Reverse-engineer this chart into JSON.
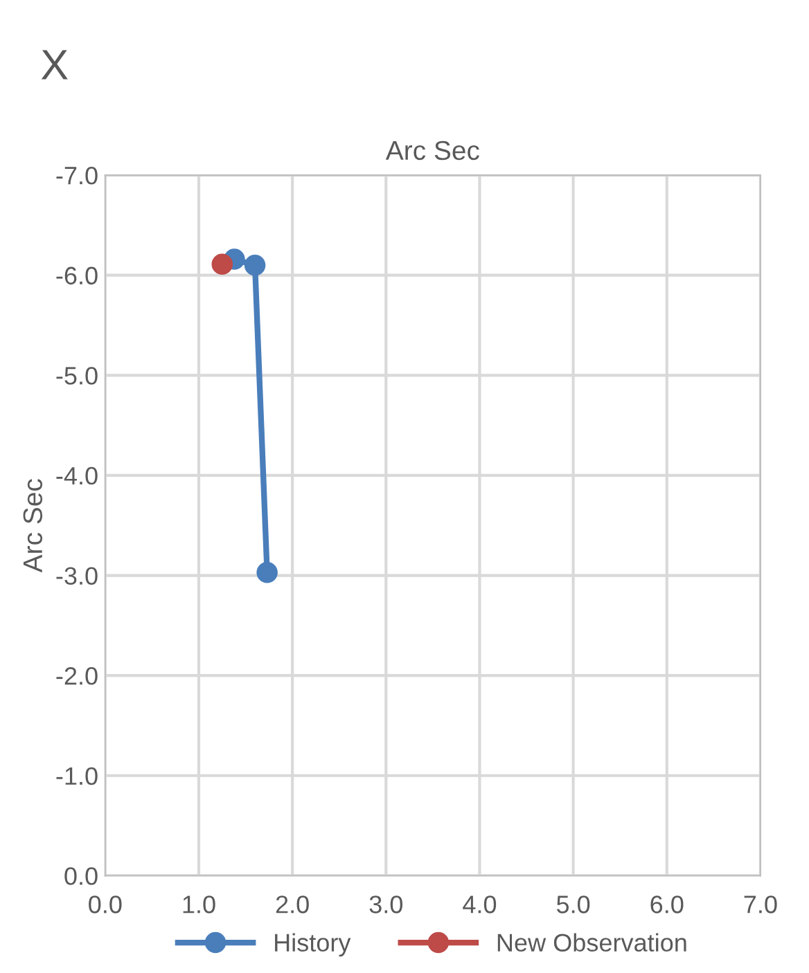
{
  "chart_data": {
    "type": "line",
    "title": "X",
    "xlabel": "Arc Sec",
    "ylabel": "Arc Sec",
    "series": [
      {
        "name": "History",
        "color": "#4a7ebb",
        "x": [
          1.73,
          1.6,
          1.38
        ],
        "values": [
          -3.03,
          -6.1,
          -6.16
        ]
      },
      {
        "name": "New Observation",
        "color": "#be4b48",
        "x": [
          1.25
        ],
        "values": [
          -6.11
        ]
      }
    ],
    "xlim": [
      0,
      7
    ],
    "xticks": [
      {
        "value": 0,
        "label": "0.0"
      },
      {
        "value": 1,
        "label": "1.0"
      },
      {
        "value": 2,
        "label": "2.0"
      },
      {
        "value": 3,
        "label": "3.0"
      },
      {
        "value": 4,
        "label": "4.0"
      },
      {
        "value": 5,
        "label": "5.0"
      },
      {
        "value": 6,
        "label": "6.0"
      },
      {
        "value": 7,
        "label": "7.0"
      }
    ],
    "ylim": [
      0,
      -7
    ],
    "yticks": [
      {
        "value": 0,
        "label": "0.0"
      },
      {
        "value": -1,
        "label": "-1.0"
      },
      {
        "value": -2,
        "label": "-2.0"
      },
      {
        "value": -3,
        "label": "-3.0"
      },
      {
        "value": -4,
        "label": "-4.0"
      },
      {
        "value": -5,
        "label": "-5.0"
      },
      {
        "value": -6,
        "label": "-6.0"
      },
      {
        "value": -7,
        "label": "-7.0"
      }
    ],
    "grid": true,
    "legend": "bottom",
    "marker": "circle",
    "line_style": "solid"
  }
}
